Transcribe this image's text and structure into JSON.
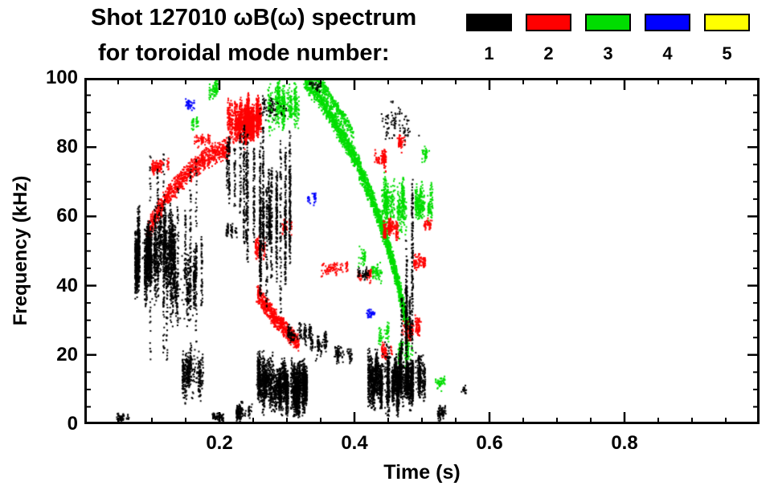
{
  "chart_data": {
    "type": "scatter",
    "title1": "Shot 127010 ωB(ω) spectrum",
    "title2": "for toroidal mode number:",
    "xlabel": "Time (s)",
    "ylabel": "Frequency (kHz)",
    "xlim": [
      0,
      1.0
    ],
    "ylim": [
      0,
      100
    ],
    "xticks": [
      {
        "v": 0.2,
        "label": "0.2"
      },
      {
        "v": 0.4,
        "label": "0.4"
      },
      {
        "v": 0.6,
        "label": "0.6"
      },
      {
        "v": 0.8,
        "label": "0.8"
      }
    ],
    "yticks": [
      {
        "v": 0,
        "label": "0"
      },
      {
        "v": 20,
        "label": "20"
      },
      {
        "v": 40,
        "label": "40"
      },
      {
        "v": 60,
        "label": "60"
      },
      {
        "v": 80,
        "label": "80"
      },
      {
        "v": 100,
        "label": "100"
      }
    ],
    "minor_tick_step_x": 0.05,
    "minor_tick_step_y": 5,
    "legend": [
      {
        "mode": 1,
        "color": "#000000"
      },
      {
        "mode": 2,
        "color": "#ff0000"
      },
      {
        "mode": 3,
        "color": "#00dd00"
      },
      {
        "mode": 4,
        "color": "#0000ff"
      },
      {
        "mode": 5,
        "color": "#ffff00"
      }
    ],
    "clusters": [
      {
        "mode": 3,
        "kind": "blob",
        "t": [
          0.272,
          0.318
        ],
        "f": [
          82,
          101
        ],
        "n": 520
      },
      {
        "mode": 3,
        "kind": "blob",
        "t": [
          0.181,
          0.201
        ],
        "f": [
          92,
          100
        ],
        "n": 90
      },
      {
        "mode": 3,
        "kind": "blob",
        "t": [
          0.159,
          0.172
        ],
        "f": [
          84,
          90
        ],
        "n": 35
      },
      {
        "mode": 3,
        "kind": "band",
        "path": [
          [
            0.325,
            100
          ],
          [
            0.35,
            94
          ],
          [
            0.375,
            86
          ],
          [
            0.4,
            77
          ],
          [
            0.42,
            68
          ],
          [
            0.438,
            59
          ],
          [
            0.452,
            50
          ],
          [
            0.463,
            42
          ],
          [
            0.472,
            34
          ],
          [
            0.479,
            28
          ]
        ],
        "halfwidth": 3.5,
        "n": 2400
      },
      {
        "mode": 3,
        "kind": "band",
        "path": [
          [
            0.345,
            100
          ],
          [
            0.37,
            93
          ],
          [
            0.398,
            84
          ]
        ],
        "halfwidth": 2,
        "n": 260
      },
      {
        "mode": 3,
        "kind": "blob",
        "t": [
          0.44,
          0.477
        ],
        "f": [
          52,
          74
        ],
        "n": 520
      },
      {
        "mode": 3,
        "kind": "blob",
        "t": [
          0.49,
          0.516
        ],
        "f": [
          55,
          72
        ],
        "n": 300
      },
      {
        "mode": 3,
        "kind": "blob",
        "t": [
          0.465,
          0.487
        ],
        "f": [
          15,
          27
        ],
        "n": 160
      },
      {
        "mode": 3,
        "kind": "blob",
        "t": [
          0.52,
          0.534
        ],
        "f": [
          9,
          15
        ],
        "n": 45
      },
      {
        "mode": 3,
        "kind": "blob",
        "t": [
          0.425,
          0.441
        ],
        "f": [
          40,
          47
        ],
        "n": 70
      },
      {
        "mode": 3,
        "kind": "blob",
        "t": [
          0.402,
          0.416
        ],
        "f": [
          45,
          52
        ],
        "n": 45
      },
      {
        "mode": 3,
        "kind": "blob",
        "t": [
          0.436,
          0.451
        ],
        "f": [
          22,
          30
        ],
        "n": 55
      },
      {
        "mode": 3,
        "kind": "blob",
        "t": [
          0.5,
          0.511
        ],
        "f": [
          75,
          82
        ],
        "n": 35
      },
      {
        "mode": 4,
        "kind": "blob",
        "t": [
          0.15,
          0.163
        ],
        "f": [
          90,
          95
        ],
        "n": 40
      },
      {
        "mode": 4,
        "kind": "blob",
        "t": [
          0.33,
          0.343
        ],
        "f": [
          63,
          67
        ],
        "n": 35
      },
      {
        "mode": 4,
        "kind": "blob",
        "t": [
          0.418,
          0.43
        ],
        "f": [
          30,
          34
        ],
        "n": 35
      },
      {
        "mode": 2,
        "kind": "band",
        "path": [
          [
            0.093,
            55
          ],
          [
            0.12,
            65
          ],
          [
            0.15,
            72
          ],
          [
            0.18,
            77
          ],
          [
            0.215,
            80
          ]
        ],
        "halfwidth": 3.5,
        "n": 1000
      },
      {
        "mode": 2,
        "kind": "blob",
        "t": [
          0.1,
          0.126
        ],
        "f": [
          71,
          78
        ],
        "n": 140
      },
      {
        "mode": 2,
        "kind": "blob",
        "t": [
          0.212,
          0.262
        ],
        "f": [
          79,
          96
        ],
        "n": 1700
      },
      {
        "mode": 2,
        "kind": "blob",
        "t": [
          0.163,
          0.186
        ],
        "f": [
          79,
          85
        ],
        "n": 70
      },
      {
        "mode": 2,
        "kind": "band",
        "path": [
          [
            0.256,
            38
          ],
          [
            0.28,
            31
          ],
          [
            0.3,
            27
          ],
          [
            0.318,
            23
          ]
        ],
        "halfwidth": 3,
        "n": 650
      },
      {
        "mode": 2,
        "kind": "blob",
        "t": [
          0.253,
          0.268
        ],
        "f": [
          44,
          56
        ],
        "n": 90
      },
      {
        "mode": 2,
        "kind": "blob",
        "t": [
          0.293,
          0.311
        ],
        "f": [
          54,
          60
        ],
        "n": 45
      },
      {
        "mode": 2,
        "kind": "blob",
        "t": [
          0.35,
          0.39
        ],
        "f": [
          42,
          48
        ],
        "n": 90
      },
      {
        "mode": 2,
        "kind": "blob",
        "t": [
          0.405,
          0.425
        ],
        "f": [
          40,
          46
        ],
        "n": 60
      },
      {
        "mode": 2,
        "kind": "blob",
        "t": [
          0.43,
          0.447
        ],
        "f": [
          72,
          80
        ],
        "n": 100
      },
      {
        "mode": 2,
        "kind": "blob",
        "t": [
          0.443,
          0.465
        ],
        "f": [
          52,
          62
        ],
        "n": 200
      },
      {
        "mode": 2,
        "kind": "blob",
        "t": [
          0.462,
          0.476
        ],
        "f": [
          78,
          86
        ],
        "n": 70
      },
      {
        "mode": 2,
        "kind": "blob",
        "t": [
          0.47,
          0.5
        ],
        "f": [
          23,
          32
        ],
        "n": 170
      },
      {
        "mode": 2,
        "kind": "blob",
        "t": [
          0.488,
          0.505
        ],
        "f": [
          43,
          50
        ],
        "n": 100
      },
      {
        "mode": 2,
        "kind": "blob",
        "t": [
          0.503,
          0.516
        ],
        "f": [
          55,
          60
        ],
        "n": 45
      },
      {
        "mode": 2,
        "kind": "blob",
        "t": [
          0.44,
          0.456
        ],
        "f": [
          18,
          24
        ],
        "n": 60
      },
      {
        "mode": 1,
        "kind": "blob",
        "t": [
          0.048,
          0.066
        ],
        "f": [
          0,
          4
        ],
        "n": 50
      },
      {
        "mode": 1,
        "kind": "blob",
        "t": [
          0.075,
          0.135
        ],
        "f": [
          33,
          66
        ],
        "n": 2300
      },
      {
        "mode": 1,
        "kind": "blob",
        "t": [
          0.128,
          0.165
        ],
        "f": [
          25,
          55
        ],
        "n": 450
      },
      {
        "mode": 1,
        "kind": "vstreaks",
        "t": [
          0.09,
          0.175
        ],
        "f": [
          15,
          80
        ],
        "streaks": 12,
        "pts": 60
      },
      {
        "mode": 1,
        "kind": "blob",
        "t": [
          0.145,
          0.176
        ],
        "f": [
          3,
          26
        ],
        "n": 420
      },
      {
        "mode": 1,
        "kind": "blob",
        "t": [
          0.19,
          0.206
        ],
        "f": [
          0,
          4
        ],
        "n": 70
      },
      {
        "mode": 1,
        "kind": "blob",
        "t": [
          0.21,
          0.226
        ],
        "f": [
          53,
          60
        ],
        "n": 55
      },
      {
        "mode": 1,
        "kind": "vstreaks",
        "t": [
          0.205,
          0.235
        ],
        "f": [
          55,
          85
        ],
        "streaks": 5,
        "pts": 50
      },
      {
        "mode": 1,
        "kind": "blob",
        "t": [
          0.225,
          0.25
        ],
        "f": [
          0,
          8
        ],
        "n": 150
      },
      {
        "mode": 1,
        "kind": "vstreaks",
        "t": [
          0.235,
          0.305
        ],
        "f": [
          30,
          87
        ],
        "streaks": 20,
        "pts": 110
      },
      {
        "mode": 1,
        "kind": "blob",
        "t": [
          0.26,
          0.3
        ],
        "f": [
          86,
          96
        ],
        "n": 70
      },
      {
        "mode": 1,
        "kind": "blob",
        "t": [
          0.253,
          0.33
        ],
        "f": [
          1,
          22
        ],
        "n": 2900
      },
      {
        "mode": 1,
        "kind": "blob",
        "t": [
          0.3,
          0.336
        ],
        "f": [
          22,
          30
        ],
        "n": 150
      },
      {
        "mode": 1,
        "kind": "blob",
        "t": [
          0.335,
          0.362
        ],
        "f": [
          18,
          28
        ],
        "n": 130
      },
      {
        "mode": 1,
        "kind": "blob",
        "t": [
          0.37,
          0.396
        ],
        "f": [
          16,
          24
        ],
        "n": 90
      },
      {
        "mode": 1,
        "kind": "blob",
        "t": [
          0.333,
          0.35
        ],
        "f": [
          95,
          100
        ],
        "n": 30
      },
      {
        "mode": 1,
        "kind": "blob",
        "t": [
          0.42,
          0.505
        ],
        "f": [
          1,
          24
        ],
        "n": 2700
      },
      {
        "mode": 1,
        "kind": "vstreaks",
        "t": [
          0.45,
          0.495
        ],
        "f": [
          5,
          55
        ],
        "streaks": 6,
        "pts": 80
      },
      {
        "mode": 1,
        "kind": "vstreaks",
        "t": [
          0.483,
          0.492
        ],
        "f": [
          5,
          78
        ],
        "streaks": 2,
        "pts": 120
      },
      {
        "mode": 1,
        "kind": "blob",
        "t": [
          0.44,
          0.5
        ],
        "f": [
          78,
          95
        ],
        "n": 90
      },
      {
        "mode": 1,
        "kind": "blob",
        "t": [
          0.52,
          0.536
        ],
        "f": [
          0,
          7
        ],
        "n": 80
      },
      {
        "mode": 1,
        "kind": "blob",
        "t": [
          0.554,
          0.566
        ],
        "f": [
          8,
          12
        ],
        "n": 18
      },
      {
        "mode": 1,
        "kind": "blob",
        "t": [
          0.405,
          0.422
        ],
        "f": [
          41,
          46
        ],
        "n": 50
      }
    ]
  }
}
